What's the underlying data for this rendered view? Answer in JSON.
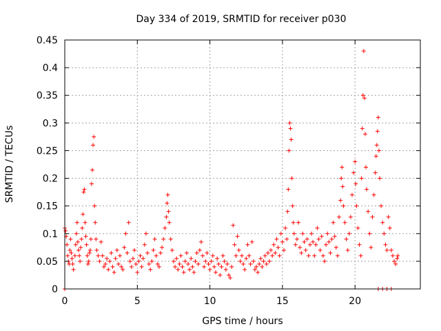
{
  "chart_data": {
    "type": "scatter",
    "title": "Day 334 of 2019, SRMTID for receiver p030",
    "xlabel": "GPS time / hours",
    "ylabel": "SRMTID / TECUs",
    "xlim": [
      0,
      24.5
    ],
    "ylim": [
      0,
      0.45
    ],
    "xticks": [
      0,
      5,
      10,
      15,
      20
    ],
    "xtick_labels": [
      "0",
      "5",
      "10",
      "15",
      "20"
    ],
    "yticks": [
      0,
      0.05,
      0.1,
      0.15,
      0.2,
      0.25,
      0.3,
      0.35,
      0.4,
      0.45
    ],
    "ytick_labels": [
      "0",
      "0.05",
      "0.1",
      "0.15",
      "0.2",
      "0.25",
      "0.3",
      "0.35",
      "0.4",
      "0.45"
    ],
    "grid": true,
    "marker": "+",
    "color": "#ff0000",
    "series": [
      {
        "name": "SRMTID",
        "points": [
          [
            0.0,
            0.0
          ],
          [
            0.0,
            0.11
          ],
          [
            0.05,
            0.105
          ],
          [
            0.1,
            0.095
          ],
          [
            0.15,
            0.08
          ],
          [
            0.2,
            0.06
          ],
          [
            0.25,
            0.05
          ],
          [
            0.3,
            0.045
          ],
          [
            0.35,
            0.07
          ],
          [
            0.4,
            0.09
          ],
          [
            0.45,
            0.065
          ],
          [
            0.5,
            0.055
          ],
          [
            0.55,
            0.045
          ],
          [
            0.6,
            0.035
          ],
          [
            0.7,
            0.06
          ],
          [
            0.75,
            0.08
          ],
          [
            0.8,
            0.1
          ],
          [
            0.85,
            0.12
          ],
          [
            0.9,
            0.085
          ],
          [
            0.95,
            0.07
          ],
          [
            1.0,
            0.06
          ],
          [
            1.05,
            0.05
          ],
          [
            1.1,
            0.075
          ],
          [
            1.15,
            0.09
          ],
          [
            1.2,
            0.11
          ],
          [
            1.25,
            0.135
          ],
          [
            1.3,
            0.175
          ],
          [
            1.35,
            0.18
          ],
          [
            1.4,
            0.12
          ],
          [
            1.45,
            0.095
          ],
          [
            1.5,
            0.08
          ],
          [
            1.55,
            0.06
          ],
          [
            1.6,
            0.045
          ],
          [
            1.65,
            0.05
          ],
          [
            1.7,
            0.065
          ],
          [
            1.75,
            0.07
          ],
          [
            1.8,
            0.09
          ],
          [
            1.85,
            0.19
          ],
          [
            1.9,
            0.215
          ],
          [
            1.95,
            0.26
          ],
          [
            2.0,
            0.275
          ],
          [
            2.05,
            0.15
          ],
          [
            2.1,
            0.12
          ],
          [
            2.15,
            0.09
          ],
          [
            2.2,
            0.07
          ],
          [
            2.3,
            0.06
          ],
          [
            2.4,
            0.05
          ],
          [
            2.5,
            0.085
          ],
          [
            2.6,
            0.06
          ],
          [
            2.7,
            0.04
          ],
          [
            2.8,
            0.045
          ],
          [
            2.9,
            0.055
          ],
          [
            3.0,
            0.035
          ],
          [
            3.1,
            0.05
          ],
          [
            3.2,
            0.065
          ],
          [
            3.3,
            0.04
          ],
          [
            3.4,
            0.03
          ],
          [
            3.5,
            0.055
          ],
          [
            3.6,
            0.07
          ],
          [
            3.7,
            0.045
          ],
          [
            3.8,
            0.06
          ],
          [
            3.9,
            0.04
          ],
          [
            4.0,
            0.035
          ],
          [
            4.1,
            0.075
          ],
          [
            4.2,
            0.1
          ],
          [
            4.3,
            0.065
          ],
          [
            4.4,
            0.12
          ],
          [
            4.5,
            0.05
          ],
          [
            4.6,
            0.04
          ],
          [
            4.7,
            0.055
          ],
          [
            4.8,
            0.07
          ],
          [
            4.9,
            0.045
          ],
          [
            5.0,
            0.03
          ],
          [
            5.1,
            0.05
          ],
          [
            5.2,
            0.06
          ],
          [
            5.3,
            0.04
          ],
          [
            5.4,
            0.055
          ],
          [
            5.5,
            0.08
          ],
          [
            5.6,
            0.1
          ],
          [
            5.7,
            0.065
          ],
          [
            5.8,
            0.045
          ],
          [
            5.9,
            0.035
          ],
          [
            6.0,
            0.05
          ],
          [
            6.1,
            0.07
          ],
          [
            6.2,
            0.09
          ],
          [
            6.3,
            0.06
          ],
          [
            6.4,
            0.045
          ],
          [
            6.5,
            0.04
          ],
          [
            6.6,
            0.065
          ],
          [
            6.7,
            0.075
          ],
          [
            6.8,
            0.09
          ],
          [
            6.9,
            0.11
          ],
          [
            7.0,
            0.13
          ],
          [
            7.05,
            0.155
          ],
          [
            7.1,
            0.17
          ],
          [
            7.15,
            0.14
          ],
          [
            7.2,
            0.12
          ],
          [
            7.3,
            0.09
          ],
          [
            7.4,
            0.07
          ],
          [
            7.5,
            0.05
          ],
          [
            7.6,
            0.04
          ],
          [
            7.7,
            0.055
          ],
          [
            7.8,
            0.035
          ],
          [
            7.9,
            0.045
          ],
          [
            8.0,
            0.06
          ],
          [
            8.1,
            0.04
          ],
          [
            8.2,
            0.03
          ],
          [
            8.3,
            0.05
          ],
          [
            8.4,
            0.065
          ],
          [
            8.5,
            0.045
          ],
          [
            8.6,
            0.035
          ],
          [
            8.7,
            0.055
          ],
          [
            8.8,
            0.04
          ],
          [
            8.9,
            0.03
          ],
          [
            9.0,
            0.05
          ],
          [
            9.1,
            0.065
          ],
          [
            9.2,
            0.045
          ],
          [
            9.3,
            0.07
          ],
          [
            9.4,
            0.085
          ],
          [
            9.5,
            0.06
          ],
          [
            9.6,
            0.04
          ],
          [
            9.7,
            0.05
          ],
          [
            9.8,
            0.065
          ],
          [
            9.9,
            0.045
          ],
          [
            10.0,
            0.035
          ],
          [
            10.1,
            0.05
          ],
          [
            10.2,
            0.06
          ],
          [
            10.3,
            0.04
          ],
          [
            10.4,
            0.03
          ],
          [
            10.5,
            0.055
          ],
          [
            10.6,
            0.045
          ],
          [
            10.7,
            0.025
          ],
          [
            10.8,
            0.04
          ],
          [
            10.9,
            0.06
          ],
          [
            11.0,
            0.05
          ],
          [
            11.1,
            0.035
          ],
          [
            11.2,
            0.045
          ],
          [
            11.3,
            0.025
          ],
          [
            11.4,
            0.02
          ],
          [
            11.5,
            0.04
          ],
          [
            11.6,
            0.115
          ],
          [
            11.7,
            0.08
          ],
          [
            11.8,
            0.06
          ],
          [
            11.9,
            0.095
          ],
          [
            12.0,
            0.07
          ],
          [
            12.1,
            0.05
          ],
          [
            12.2,
            0.06
          ],
          [
            12.3,
            0.045
          ],
          [
            12.4,
            0.035
          ],
          [
            12.5,
            0.055
          ],
          [
            12.6,
            0.08
          ],
          [
            12.7,
            0.06
          ],
          [
            12.8,
            0.045
          ],
          [
            12.9,
            0.085
          ],
          [
            13.0,
            0.05
          ],
          [
            13.1,
            0.035
          ],
          [
            13.2,
            0.04
          ],
          [
            13.3,
            0.03
          ],
          [
            13.4,
            0.045
          ],
          [
            13.5,
            0.055
          ],
          [
            13.6,
            0.04
          ],
          [
            13.7,
            0.05
          ],
          [
            13.8,
            0.06
          ],
          [
            13.9,
            0.045
          ],
          [
            14.0,
            0.065
          ],
          [
            14.1,
            0.05
          ],
          [
            14.2,
            0.07
          ],
          [
            14.3,
            0.06
          ],
          [
            14.4,
            0.08
          ],
          [
            14.5,
            0.065
          ],
          [
            14.6,
            0.09
          ],
          [
            14.7,
            0.075
          ],
          [
            14.8,
            0.06
          ],
          [
            14.9,
            0.1
          ],
          [
            15.0,
            0.085
          ],
          [
            15.1,
            0.07
          ],
          [
            15.2,
            0.11
          ],
          [
            15.3,
            0.09
          ],
          [
            15.35,
            0.14
          ],
          [
            15.4,
            0.18
          ],
          [
            15.45,
            0.25
          ],
          [
            15.5,
            0.3
          ],
          [
            15.55,
            0.29
          ],
          [
            15.6,
            0.27
          ],
          [
            15.65,
            0.2
          ],
          [
            15.7,
            0.15
          ],
          [
            15.75,
            0.12
          ],
          [
            15.8,
            0.1
          ],
          [
            15.9,
            0.08
          ],
          [
            16.0,
            0.09
          ],
          [
            16.1,
            0.12
          ],
          [
            16.2,
            0.075
          ],
          [
            16.3,
            0.065
          ],
          [
            16.4,
            0.1
          ],
          [
            16.5,
            0.085
          ],
          [
            16.6,
            0.07
          ],
          [
            16.7,
            0.09
          ],
          [
            16.8,
            0.06
          ],
          [
            16.9,
            0.08
          ],
          [
            17.0,
            0.1
          ],
          [
            17.1,
            0.085
          ],
          [
            17.2,
            0.06
          ],
          [
            17.3,
            0.08
          ],
          [
            17.4,
            0.11
          ],
          [
            17.5,
            0.09
          ],
          [
            17.6,
            0.07
          ],
          [
            17.7,
            0.095
          ],
          [
            17.8,
            0.06
          ],
          [
            17.9,
            0.05
          ],
          [
            18.0,
            0.08
          ],
          [
            18.1,
            0.1
          ],
          [
            18.2,
            0.085
          ],
          [
            18.3,
            0.065
          ],
          [
            18.4,
            0.09
          ],
          [
            18.5,
            0.12
          ],
          [
            18.6,
            0.095
          ],
          [
            18.7,
            0.075
          ],
          [
            18.8,
            0.06
          ],
          [
            18.9,
            0.13
          ],
          [
            19.0,
            0.16
          ],
          [
            19.05,
            0.2
          ],
          [
            19.1,
            0.22
          ],
          [
            19.15,
            0.185
          ],
          [
            19.2,
            0.15
          ],
          [
            19.3,
            0.12
          ],
          [
            19.4,
            0.09
          ],
          [
            19.5,
            0.07
          ],
          [
            19.6,
            0.1
          ],
          [
            19.7,
            0.13
          ],
          [
            19.8,
            0.17
          ],
          [
            19.9,
            0.21
          ],
          [
            20.0,
            0.23
          ],
          [
            20.05,
            0.19
          ],
          [
            20.1,
            0.15
          ],
          [
            20.2,
            0.11
          ],
          [
            20.3,
            0.08
          ],
          [
            20.4,
            0.06
          ],
          [
            20.45,
            0.2
          ],
          [
            20.5,
            0.29
          ],
          [
            20.55,
            0.35
          ],
          [
            20.6,
            0.43
          ],
          [
            20.65,
            0.345
          ],
          [
            20.7,
            0.28
          ],
          [
            20.75,
            0.22
          ],
          [
            20.8,
            0.18
          ],
          [
            20.9,
            0.14
          ],
          [
            21.0,
            0.1
          ],
          [
            21.1,
            0.075
          ],
          [
            21.2,
            0.13
          ],
          [
            21.3,
            0.17
          ],
          [
            21.4,
            0.21
          ],
          [
            21.45,
            0.24
          ],
          [
            21.5,
            0.26
          ],
          [
            21.55,
            0.285
          ],
          [
            21.6,
            0.31
          ],
          [
            21.65,
            0.25
          ],
          [
            21.7,
            0.2
          ],
          [
            21.8,
            0.15
          ],
          [
            21.9,
            0.12
          ],
          [
            22.0,
            0.1
          ],
          [
            22.1,
            0.08
          ],
          [
            22.2,
            0.07
          ],
          [
            22.3,
            0.13
          ],
          [
            22.4,
            0.11
          ],
          [
            22.5,
            0.07
          ],
          [
            22.6,
            0.06
          ],
          [
            22.7,
            0.05
          ],
          [
            22.8,
            0.045
          ],
          [
            22.9,
            0.055
          ],
          [
            22.95,
            0.06
          ],
          [
            21.6,
            0.0
          ],
          [
            21.9,
            0.0
          ],
          [
            22.2,
            0.0
          ],
          [
            22.5,
            0.0
          ]
        ]
      }
    ]
  }
}
